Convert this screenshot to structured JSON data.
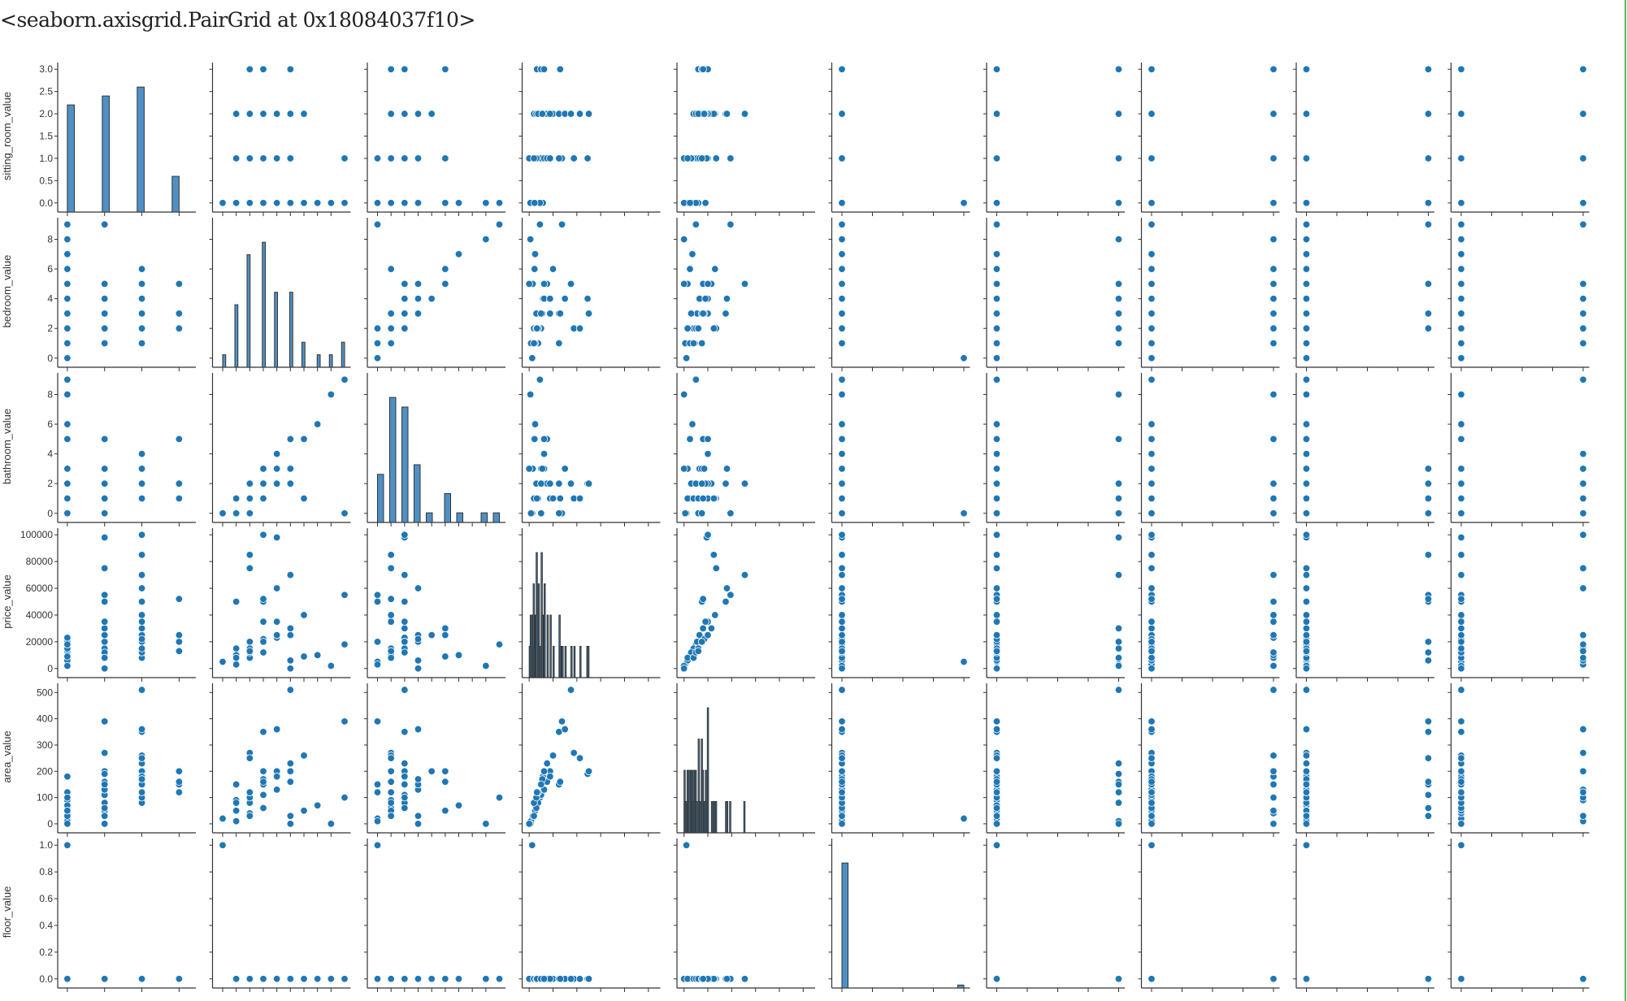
{
  "output_text": "<seaborn.axisgrid.PairGrid at 0x18084037f10>",
  "colors": {
    "point": "#1f77b4",
    "point_edge": "#ffffff",
    "bar": "#4f90c4",
    "bar_edge": "#333333",
    "axis": "#333333",
    "frame_edge": "#5cb85c"
  },
  "chart_data": {
    "type": "scatter",
    "kind": "pairplot",
    "row_vars": [
      {
        "key": 0,
        "label": "sitting_room_value",
        "range": [
          -0.15,
          3.15
        ],
        "yticks": [
          0,
          0.5,
          1,
          1.5,
          2,
          2.5,
          3
        ],
        "ytick_labels": [
          "0.0",
          "0.5",
          "1.0",
          "1.5",
          "2.0",
          "2.5",
          "3.0"
        ]
      },
      {
        "key": 1,
        "label": "bedroom_value",
        "range": [
          -0.45,
          9.45
        ],
        "yticks": [
          0,
          2,
          4,
          6,
          8
        ],
        "ytick_labels": [
          "0",
          "2",
          "4",
          "6",
          "8"
        ]
      },
      {
        "key": 2,
        "label": "bathroom_value",
        "range": [
          -0.45,
          9.45
        ],
        "yticks": [
          0,
          2,
          4,
          6,
          8
        ],
        "ytick_labels": [
          "0",
          "2",
          "4",
          "6",
          "8"
        ]
      },
      {
        "key": 3,
        "label": "price_value",
        "range": [
          -5000,
          105000
        ],
        "yticks": [
          0,
          20000,
          40000,
          60000,
          80000,
          100000
        ],
        "ytick_labels": [
          "0",
          "20000",
          "40000",
          "60000",
          "80000",
          "100000"
        ]
      },
      {
        "key": 4,
        "label": "area_value",
        "range": [
          -25,
          535
        ],
        "yticks": [
          0,
          100,
          200,
          300,
          400,
          500
        ],
        "ytick_labels": [
          "0",
          "100",
          "200",
          "300",
          "400",
          "500"
        ]
      },
      {
        "key": 5,
        "label": "floor_value",
        "range": [
          -0.05,
          1.05
        ],
        "yticks": [
          0,
          0.2,
          0.4,
          0.6,
          0.8,
          1
        ],
        "ytick_labels": [
          "0.0",
          "0.2",
          "0.4",
          "0.6",
          "0.8",
          "1.0"
        ]
      }
    ],
    "col_vars": [
      {
        "key": 0,
        "range": [
          -0.15,
          3.45
        ],
        "xticks": [
          0,
          1,
          2,
          3
        ],
        "hist_bins": 16
      },
      {
        "key": 1,
        "range": [
          -0.45,
          9.45
        ],
        "xticks": [
          0,
          1,
          2,
          3,
          4,
          5,
          6,
          7,
          8
        ],
        "hist_bins": 40
      },
      {
        "key": 2,
        "range": [
          -0.45,
          9.45
        ],
        "xticks": [
          0,
          1,
          2,
          3,
          4,
          5,
          6,
          7,
          8
        ],
        "hist_bins": 20
      },
      {
        "key": 3,
        "range": [
          -5000,
          220000
        ],
        "xticks": [
          0,
          40000,
          80000,
          120000,
          160000,
          200000
        ],
        "hist_bins": 60
      },
      {
        "key": 4,
        "range": [
          -25,
          1100
        ],
        "xticks": [
          0,
          200,
          400,
          600,
          800,
          1000
        ],
        "hist_bins": 60
      },
      {
        "key": 5,
        "range": [
          -0.05,
          1.05
        ],
        "xticks": [
          0,
          0.25,
          0.5,
          0.75,
          1
        ],
        "hist_bins": 20
      },
      {
        "key": 6,
        "range": [
          -0.05,
          1.05
        ],
        "xticks": [
          0,
          0.25,
          0.5,
          0.75,
          1
        ]
      },
      {
        "key": 7,
        "range": [
          -0.05,
          1.05
        ],
        "xticks": [
          0,
          0.25,
          0.5,
          0.75,
          1
        ]
      },
      {
        "key": 8,
        "range": [
          -0.05,
          1.05
        ],
        "xticks": [
          0,
          0.25,
          0.5,
          0.75,
          1
        ]
      },
      {
        "key": 9,
        "range": [
          -0.05,
          1.05
        ],
        "xticks": [
          0,
          0.25,
          0.5,
          0.75,
          1
        ]
      }
    ],
    "records": [
      [
        0,
        0,
        0,
        5000,
        20,
        1,
        0,
        0,
        0,
        0
      ],
      [
        0,
        1,
        0,
        3000,
        10,
        0,
        1,
        0,
        0,
        1
      ],
      [
        0,
        2,
        1,
        8000,
        40,
        0,
        0,
        1,
        0,
        0
      ],
      [
        0,
        3,
        1,
        12000,
        60,
        0,
        0,
        0,
        1,
        0
      ],
      [
        0,
        1,
        1,
        15000,
        90,
        0,
        0,
        0,
        0,
        1
      ],
      [
        0,
        2,
        0,
        20000,
        120,
        0,
        1,
        0,
        0,
        0
      ],
      [
        0,
        4,
        2,
        23000,
        180,
        0,
        0,
        1,
        0,
        0
      ],
      [
        0,
        5,
        3,
        6000,
        30,
        0,
        0,
        0,
        1,
        1
      ],
      [
        0,
        7,
        6,
        10000,
        70,
        0,
        0,
        0,
        0,
        0
      ],
      [
        0,
        8,
        8,
        2000,
        0,
        0,
        1,
        1,
        0,
        0
      ],
      [
        0,
        9,
        9,
        18000,
        100,
        0,
        0,
        0,
        0,
        1
      ],
      [
        0,
        6,
        5,
        9000,
        50,
        0,
        0,
        0,
        0,
        0
      ],
      [
        1,
        1,
        1,
        10000,
        50,
        0,
        0,
        1,
        0,
        0
      ],
      [
        1,
        2,
        2,
        15000,
        80,
        0,
        1,
        0,
        0,
        0
      ],
      [
        1,
        3,
        2,
        20000,
        110,
        0,
        0,
        0,
        1,
        0
      ],
      [
        1,
        4,
        3,
        25000,
        130,
        0,
        0,
        0,
        0,
        1
      ],
      [
        1,
        5,
        5,
        30000,
        160,
        0,
        1,
        0,
        0,
        0
      ],
      [
        1,
        3,
        1,
        35000,
        200,
        0,
        0,
        1,
        0,
        0
      ],
      [
        1,
        9,
        0,
        55000,
        390,
        0,
        0,
        0,
        1,
        0
      ],
      [
        1,
        2,
        1,
        75000,
        270,
        0,
        0,
        0,
        0,
        1
      ],
      [
        1,
        4,
        2,
        98000,
        190,
        0,
        1,
        0,
        0,
        0
      ],
      [
        1,
        5,
        3,
        0,
        0,
        0,
        0,
        0,
        0,
        0
      ],
      [
        1,
        1,
        0,
        50000,
        150,
        0,
        0,
        1,
        0,
        0
      ],
      [
        1,
        3,
        2,
        12000,
        60,
        0,
        0,
        0,
        1,
        0
      ],
      [
        1,
        2,
        1,
        8000,
        30,
        0,
        0,
        0,
        0,
        1
      ],
      [
        2,
        1,
        1,
        8000,
        80,
        0,
        1,
        0,
        0,
        0
      ],
      [
        2,
        2,
        2,
        12000,
        100,
        0,
        0,
        1,
        0,
        0
      ],
      [
        2,
        3,
        3,
        20000,
        150,
        0,
        0,
        0,
        1,
        0
      ],
      [
        2,
        4,
        4,
        25000,
        200,
        0,
        0,
        0,
        0,
        1
      ],
      [
        2,
        5,
        2,
        30000,
        230,
        0,
        1,
        0,
        0,
        0
      ],
      [
        2,
        6,
        1,
        40000,
        260,
        0,
        0,
        1,
        0,
        0
      ],
      [
        2,
        3,
        2,
        50000,
        350,
        0,
        0,
        0,
        1,
        0
      ],
      [
        2,
        4,
        3,
        60000,
        360,
        0,
        0,
        0,
        0,
        1
      ],
      [
        2,
        5,
        2,
        70000,
        510,
        0,
        1,
        1,
        0,
        0
      ],
      [
        2,
        2,
        1,
        85000,
        250,
        0,
        0,
        0,
        1,
        0
      ],
      [
        2,
        3,
        2,
        100000,
        200,
        0,
        0,
        0,
        0,
        1
      ],
      [
        2,
        4,
        2,
        35000,
        180,
        0,
        0,
        0,
        0,
        0
      ],
      [
        2,
        2,
        1,
        15000,
        120,
        0,
        0,
        0,
        0,
        0
      ],
      [
        2,
        3,
        3,
        22000,
        170,
        0,
        0,
        0,
        0,
        0
      ],
      [
        3,
        2,
        1,
        13000,
        120,
        0,
        0,
        0,
        0,
        1
      ],
      [
        3,
        3,
        2,
        20000,
        150,
        0,
        1,
        0,
        0,
        0
      ],
      [
        3,
        5,
        5,
        25000,
        200,
        0,
        0,
        1,
        0,
        0
      ],
      [
        3,
        3,
        1,
        52000,
        160,
        0,
        0,
        0,
        1,
        0
      ]
    ]
  }
}
